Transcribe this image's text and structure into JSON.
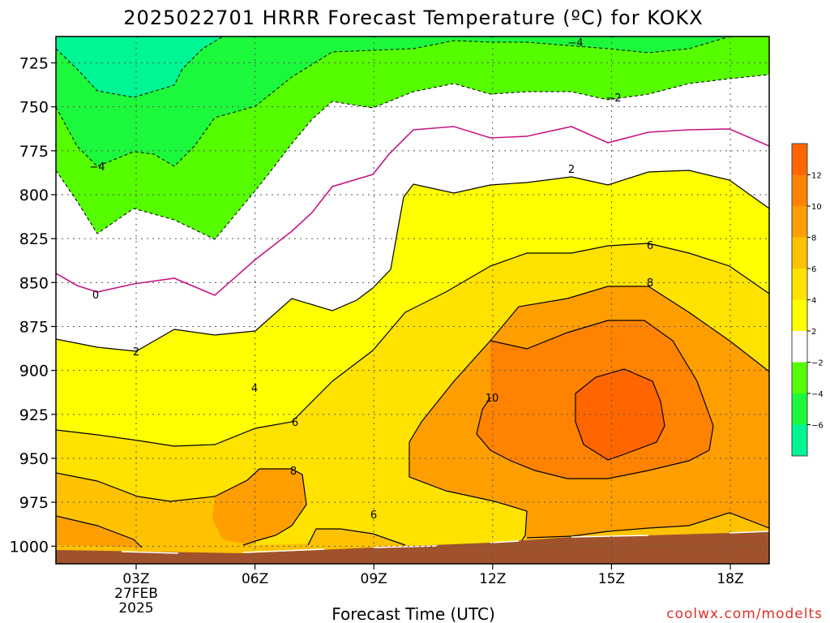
{
  "chart_data": {
    "type": "contour",
    "title": "2025022701 HRRR Forecast Temperature (ºC) for KOKX",
    "xlabel": "Forecast Time (UTC)",
    "credit": "coolwx.com/modelts",
    "x_ticks": [
      "03Z",
      "06Z",
      "09Z",
      "12Z",
      "15Z",
      "18Z"
    ],
    "x_date_lines": [
      "27FEB",
      "2025"
    ],
    "y_ticks": [
      "725",
      "750",
      "775",
      "800",
      "825",
      "850",
      "875",
      "900",
      "925",
      "950",
      "975",
      "1000"
    ],
    "ylim": [
      1010,
      710
    ],
    "grid": "dotted",
    "colorbar_ticks": [
      "12",
      "10",
      "8",
      "6",
      "4",
      "2",
      "−2",
      "−4",
      "−6"
    ],
    "bands": [
      {
        "range": "< -6",
        "color": "#00f593"
      },
      {
        "range": "-6 to -4",
        "color": "#1cf93c"
      },
      {
        "range": "-4 to -2",
        "color": "#55fd00"
      },
      {
        "range": "-2 to 2",
        "color": "#ffffff"
      },
      {
        "range": "2 to 4",
        "color": "#ffff00"
      },
      {
        "range": "4 to 6",
        "color": "#ffe200"
      },
      {
        "range": "6 to 8",
        "color": "#ffc200"
      },
      {
        "range": "8 to 10",
        "color": "#ff9e00"
      },
      {
        "range": "10 to 12",
        "color": "#ff8200"
      },
      {
        "range": "> 12",
        "color": "#ff6600"
      }
    ],
    "contour_labels": [
      {
        "text": "−4",
        "level": -4
      },
      {
        "text": "−2",
        "level": -2
      },
      {
        "text": "−4",
        "level": -4
      },
      {
        "text": "0",
        "level": 0
      },
      {
        "text": "2",
        "level": 2
      },
      {
        "text": "2",
        "level": 2
      },
      {
        "text": "4",
        "level": 4
      },
      {
        "text": "6",
        "level": 6
      },
      {
        "text": "6",
        "level": 6
      },
      {
        "text": "8",
        "level": 8
      },
      {
        "text": "6",
        "level": 6
      },
      {
        "text": "8",
        "level": 8
      },
      {
        "text": "10",
        "level": 10
      }
    ],
    "ground_color": "#a0522d",
    "zero_line_color": "#c71585"
  }
}
